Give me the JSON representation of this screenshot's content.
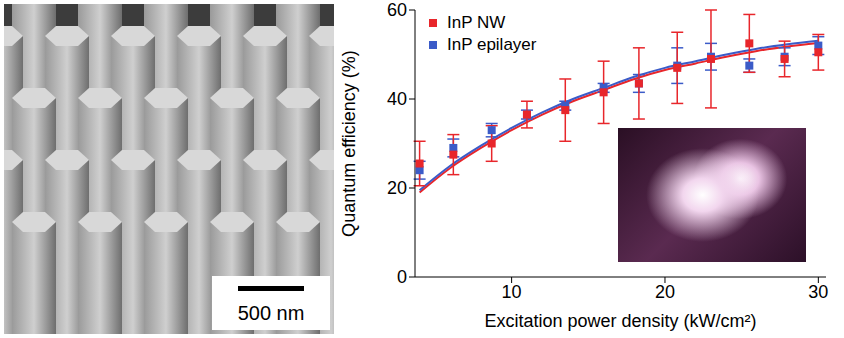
{
  "chart_data": {
    "type": "scatter",
    "x_label": "Excitation power density (kW/cm²)",
    "y_label": "Quantum efficiency (%)",
    "xlim": [
      3.7,
      30.5
    ],
    "ylim": [
      0,
      60
    ],
    "xticks": [
      10,
      20,
      30
    ],
    "yticks": [
      0,
      20,
      40,
      60
    ],
    "legend": "upper left",
    "x": [
      4,
      6.2,
      8.7,
      11,
      13.5,
      16,
      18.3,
      20.8,
      23,
      25.5,
      27.8,
      30
    ],
    "series": [
      {
        "name": "InP NW",
        "color": "#e8262b",
        "marker": "square",
        "values": [
          25.5,
          27.5,
          30,
          36.5,
          37.5,
          41.5,
          43.5,
          47,
          49,
          52.5,
          49,
          50.5
        ],
        "errors": [
          5,
          4.5,
          4,
          3,
          7,
          7,
          8,
          8,
          11,
          6.5,
          4,
          4
        ],
        "fit": {
          "x": [
            4,
            6,
            8,
            10,
            12,
            14,
            16,
            18,
            20,
            22,
            24,
            26,
            28,
            30
          ],
          "values": [
            19,
            24.5,
            29,
            33,
            36.5,
            39.5,
            42,
            44.5,
            46.5,
            48,
            49.5,
            50.8,
            51.8,
            52.6
          ]
        }
      },
      {
        "name": "InP epilayer",
        "color": "#3b5bc8",
        "marker": "square",
        "values": [
          24,
          29,
          33,
          36.5,
          38.5,
          42.5,
          43.5,
          47.5,
          49.5,
          47.5,
          49.5,
          52
        ],
        "errors": [
          2,
          2,
          1.5,
          1,
          1,
          1,
          2,
          4,
          3,
          1.5,
          2,
          2
        ],
        "fit": {
          "x": [
            4,
            6,
            8,
            10,
            12,
            14,
            16,
            18,
            20,
            22,
            24,
            26,
            28,
            30
          ],
          "values": [
            19.5,
            25,
            29.5,
            33.5,
            37,
            40,
            42.5,
            45,
            47,
            48.5,
            50,
            51.3,
            52.3,
            53.1
          ]
        }
      }
    ]
  },
  "sem_image": {
    "scale_bar_label": "500 nm"
  }
}
